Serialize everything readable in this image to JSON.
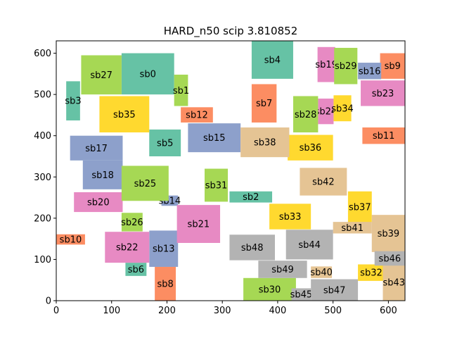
{
  "chart_data": {
    "type": "rect-layout",
    "title": "HARD_n50 scip 3.810852",
    "xlim": [
      0,
      630
    ],
    "ylim": [
      0,
      630
    ],
    "x_ticks": [
      0,
      100,
      200,
      300,
      400,
      500,
      600
    ],
    "y_ticks": [
      0,
      100,
      200,
      300,
      400,
      500,
      600
    ],
    "colors": {
      "teal": "#66c2a5",
      "orange": "#fc8d62",
      "blue": "#8da0cb",
      "pink": "#e78ac3",
      "green": "#a6d854",
      "yellow": "#ffd92f",
      "tan": "#e5c494",
      "gray": "#b3b3b3"
    },
    "rects": [
      {
        "name": "sb0",
        "x": 118,
        "y": 500,
        "w": 95,
        "h": 100,
        "color": "teal"
      },
      {
        "name": "sb1",
        "x": 213,
        "y": 472,
        "w": 25,
        "h": 76,
        "color": "green"
      },
      {
        "name": "sb2",
        "x": 313,
        "y": 238,
        "w": 77,
        "h": 27,
        "color": "teal"
      },
      {
        "name": "sb3",
        "x": 18,
        "y": 437,
        "w": 25,
        "h": 95,
        "color": "teal"
      },
      {
        "name": "sb4",
        "x": 353,
        "y": 538,
        "w": 75,
        "h": 92,
        "color": "teal"
      },
      {
        "name": "sb5",
        "x": 168,
        "y": 350,
        "w": 57,
        "h": 65,
        "color": "teal"
      },
      {
        "name": "sb6",
        "x": 125,
        "y": 60,
        "w": 38,
        "h": 32,
        "color": "teal"
      },
      {
        "name": "sb7",
        "x": 353,
        "y": 432,
        "w": 45,
        "h": 93,
        "color": "orange"
      },
      {
        "name": "sb8",
        "x": 178,
        "y": 0,
        "w": 38,
        "h": 82,
        "color": "orange"
      },
      {
        "name": "sb9",
        "x": 585,
        "y": 538,
        "w": 45,
        "h": 62,
        "color": "orange"
      },
      {
        "name": "sb10",
        "x": 0,
        "y": 136,
        "w": 52,
        "h": 25,
        "color": "orange"
      },
      {
        "name": "sb11",
        "x": 553,
        "y": 380,
        "w": 77,
        "h": 40,
        "color": "orange"
      },
      {
        "name": "sb12",
        "x": 225,
        "y": 432,
        "w": 58,
        "h": 37,
        "color": "orange"
      },
      {
        "name": "sb13",
        "x": 168,
        "y": 82,
        "w": 52,
        "h": 88,
        "color": "blue"
      },
      {
        "name": "sb14",
        "x": 190,
        "y": 230,
        "w": 30,
        "h": 25,
        "color": "blue"
      },
      {
        "name": "sb15",
        "x": 238,
        "y": 360,
        "w": 95,
        "h": 70,
        "color": "blue"
      },
      {
        "name": "sb16",
        "x": 545,
        "y": 537,
        "w": 42,
        "h": 40,
        "color": "blue"
      },
      {
        "name": "sb17",
        "x": 25,
        "y": 340,
        "w": 95,
        "h": 60,
        "color": "blue"
      },
      {
        "name": "sb18",
        "x": 48,
        "y": 270,
        "w": 72,
        "h": 70,
        "color": "blue"
      },
      {
        "name": "sb19",
        "x": 472,
        "y": 530,
        "w": 32,
        "h": 85,
        "color": "pink"
      },
      {
        "name": "sb20",
        "x": 32,
        "y": 215,
        "w": 88,
        "h": 48,
        "color": "pink"
      },
      {
        "name": "sb21",
        "x": 218,
        "y": 140,
        "w": 78,
        "h": 92,
        "color": "pink"
      },
      {
        "name": "sb22",
        "x": 88,
        "y": 92,
        "w": 80,
        "h": 75,
        "color": "pink"
      },
      {
        "name": "sb23",
        "x": 550,
        "y": 472,
        "w": 80,
        "h": 62,
        "color": "pink"
      },
      {
        "name": "sb24",
        "x": 473,
        "y": 428,
        "w": 28,
        "h": 62,
        "color": "pink"
      },
      {
        "name": "sb25",
        "x": 118,
        "y": 242,
        "w": 85,
        "h": 85,
        "color": "green"
      },
      {
        "name": "sb26",
        "x": 118,
        "y": 168,
        "w": 38,
        "h": 45,
        "color": "green"
      },
      {
        "name": "sb27",
        "x": 45,
        "y": 500,
        "w": 73,
        "h": 95,
        "color": "green"
      },
      {
        "name": "sb28",
        "x": 428,
        "y": 408,
        "w": 45,
        "h": 88,
        "color": "green"
      },
      {
        "name": "sb29",
        "x": 502,
        "y": 525,
        "w": 42,
        "h": 88,
        "color": "green"
      },
      {
        "name": "sb30",
        "x": 338,
        "y": 0,
        "w": 95,
        "h": 55,
        "color": "green"
      },
      {
        "name": "sb31",
        "x": 268,
        "y": 240,
        "w": 42,
        "h": 80,
        "color": "green"
      },
      {
        "name": "sb32",
        "x": 545,
        "y": 48,
        "w": 48,
        "h": 40,
        "color": "yellow"
      },
      {
        "name": "sb33",
        "x": 385,
        "y": 173,
        "w": 75,
        "h": 62,
        "color": "yellow"
      },
      {
        "name": "sb34",
        "x": 501,
        "y": 435,
        "w": 32,
        "h": 63,
        "color": "yellow"
      },
      {
        "name": "sb35",
        "x": 78,
        "y": 408,
        "w": 90,
        "h": 88,
        "color": "yellow"
      },
      {
        "name": "sb36",
        "x": 418,
        "y": 340,
        "w": 82,
        "h": 62,
        "color": "yellow"
      },
      {
        "name": "sb37",
        "x": 527,
        "y": 190,
        "w": 43,
        "h": 75,
        "color": "yellow"
      },
      {
        "name": "sb38",
        "x": 333,
        "y": 348,
        "w": 88,
        "h": 72,
        "color": "tan"
      },
      {
        "name": "sb39",
        "x": 570,
        "y": 118,
        "w": 60,
        "h": 90,
        "color": "tan"
      },
      {
        "name": "sb40",
        "x": 460,
        "y": 55,
        "w": 38,
        "h": 28,
        "color": "tan"
      },
      {
        "name": "sb41",
        "x": 500,
        "y": 163,
        "w": 70,
        "h": 28,
        "color": "tan"
      },
      {
        "name": "sb42",
        "x": 440,
        "y": 255,
        "w": 85,
        "h": 67,
        "color": "tan"
      },
      {
        "name": "sb43",
        "x": 590,
        "y": 0,
        "w": 40,
        "h": 88,
        "color": "tan"
      },
      {
        "name": "sb44",
        "x": 415,
        "y": 100,
        "w": 85,
        "h": 72,
        "color": "gray"
      },
      {
        "name": "sb45",
        "x": 425,
        "y": 0,
        "w": 35,
        "h": 30,
        "color": "gray"
      },
      {
        "name": "sb46",
        "x": 575,
        "y": 85,
        "w": 55,
        "h": 35,
        "color": "gray"
      },
      {
        "name": "sb47",
        "x": 460,
        "y": 0,
        "w": 85,
        "h": 52,
        "color": "gray"
      },
      {
        "name": "sb48",
        "x": 313,
        "y": 98,
        "w": 82,
        "h": 62,
        "color": "gray"
      },
      {
        "name": "sb49",
        "x": 365,
        "y": 55,
        "w": 88,
        "h": 42,
        "color": "gray"
      }
    ]
  }
}
